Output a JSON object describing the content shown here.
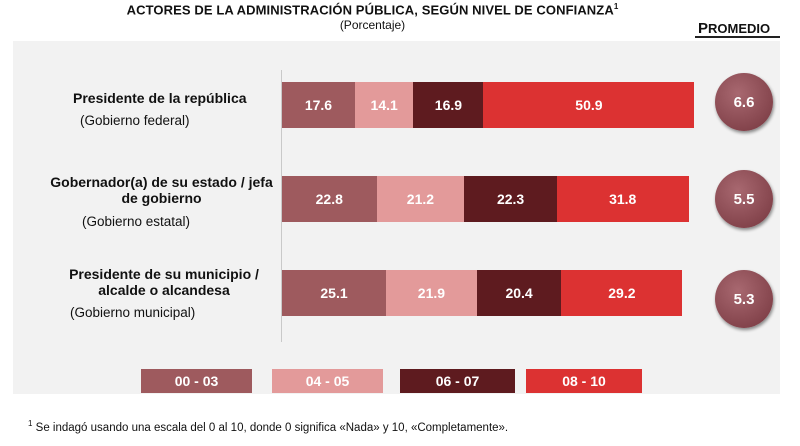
{
  "title": "ACTORES DE LA ADMINISTRACIÓN PÚBLICA, SEGÚN NIVEL DE CONFIANZA",
  "title_sup": "1",
  "subtitle": "(Porcentaje)",
  "promedio_header": "PROMEDIO",
  "footnote_sup": "1",
  "footnote": "Se indagó usando una escala del 0 al 10, donde 0 significa «Nada» y 10, «Completamente».",
  "colors": {
    "c0003": "#9e5a5e",
    "c0405": "#e39a9a",
    "c0607": "#5e1b1f",
    "c0810": "#dc3232"
  },
  "chart_data": {
    "type": "bar",
    "stacked": true,
    "orientation": "horizontal",
    "title": "ACTORES DE LA ADMINISTRACIÓN PÚBLICA, SEGÚN NIVEL DE CONFIANZA",
    "subtitle": "(Porcentaje)",
    "categories": [
      {
        "name": "Presidente de la república",
        "sub": "(Gobierno federal)",
        "promedio": "6.6"
      },
      {
        "name": "Gobernador(a) de su estado / jefa de gobierno",
        "sub": "(Gobierno estatal)",
        "promedio": "5.5"
      },
      {
        "name": "Presidente de su municipio / alcalde o alcandesa",
        "sub": "(Gobierno municipal)",
        "promedio": "5.3"
      }
    ],
    "series": [
      {
        "name": "00 - 03",
        "color": "#9e5a5e",
        "values": [
          17.6,
          22.8,
          25.1
        ]
      },
      {
        "name": "04 - 05",
        "color": "#e39a9a",
        "values": [
          14.1,
          21.2,
          21.9
        ]
      },
      {
        "name": "06 - 07",
        "color": "#5e1b1f",
        "values": [
          16.9,
          22.3,
          20.4
        ]
      },
      {
        "name": "08 - 10",
        "color": "#dc3232",
        "values": [
          50.9,
          31.8,
          29.2
        ]
      }
    ],
    "xlim": [
      0,
      100
    ],
    "legend_position": "bottom"
  }
}
